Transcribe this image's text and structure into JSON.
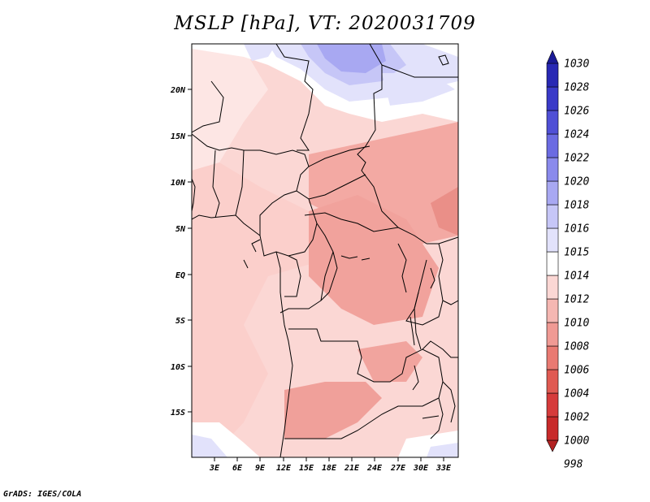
{
  "title": "MSLP [hPa], VT: 2020031709",
  "credit": "GrADS: IGES/COLA",
  "lat_labels": [
    "20N",
    "15N",
    "10N",
    "5N",
    "EQ",
    "5S",
    "10S",
    "15S"
  ],
  "lon_labels": [
    "3E",
    "6E",
    "9E",
    "12E",
    "15E",
    "18E",
    "21E",
    "24E",
    "27E",
    "30E",
    "33E"
  ],
  "colorbar": {
    "levels": [
      "998",
      "1000",
      "1002",
      "1004",
      "1006",
      "1008",
      "1010",
      "1012",
      "1014",
      "1015",
      "1016",
      "1018",
      "1020",
      "1022",
      "1024",
      "1026",
      "1028",
      "1030"
    ],
    "colors": [
      "#b22222",
      "#c82a2a",
      "#d63b3b",
      "#e05a52",
      "#e97a72",
      "#f09a94",
      "#f5b7b2",
      "#fbd7d4",
      "#ffffff",
      "#e2e2fb",
      "#c6c6f7",
      "#a8a8f2",
      "#8a8aec",
      "#6b6be2",
      "#5050d6",
      "#3a3ac8",
      "#2828b4",
      "#1a1a96"
    ]
  }
}
